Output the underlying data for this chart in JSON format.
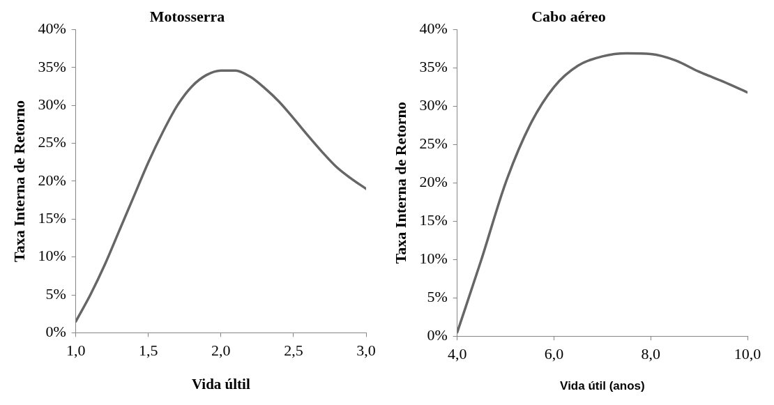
{
  "chart_data": [
    {
      "type": "line",
      "title": "Motosserra",
      "xlabel": "Vida últil",
      "ylabel": "Taxa Interna de Retorno",
      "legend": false,
      "grid": false,
      "marker": "none",
      "line_style": "solid",
      "x": [
        1.0,
        1.1,
        1.2,
        1.3,
        1.4,
        1.5,
        1.6,
        1.7,
        1.8,
        1.9,
        2.0,
        2.1,
        2.2,
        2.3,
        2.4,
        2.5,
        2.6,
        2.7,
        2.8,
        2.9,
        3.0
      ],
      "series": [
        {
          "color": "#666666",
          "values": [
            1.5,
            5,
            9,
            13.5,
            18,
            22.5,
            26.5,
            30,
            32.5,
            34,
            34.6,
            34.6,
            33.8,
            32.3,
            30.5,
            28.3,
            26,
            23.8,
            21.8,
            20.3,
            19
          ]
        }
      ],
      "xlim": [
        1,
        3
      ],
      "xticks": [
        {
          "value": 1,
          "label": "1,0"
        },
        {
          "value": 1.5,
          "label": "1,5"
        },
        {
          "value": 2,
          "label": "2,0"
        },
        {
          "value": 2.5,
          "label": "2,5"
        },
        {
          "value": 3,
          "label": "3,0"
        }
      ],
      "ylim": [
        0,
        40
      ],
      "yticks": [
        {
          "value": 0,
          "label": "0%"
        },
        {
          "value": 5,
          "label": "5%"
        },
        {
          "value": 10,
          "label": "10%"
        },
        {
          "value": 15,
          "label": "15%"
        },
        {
          "value": 20,
          "label": "20%"
        },
        {
          "value": 25,
          "label": "25%"
        },
        {
          "value": 30,
          "label": "30%"
        },
        {
          "value": 35,
          "label": "35%"
        },
        {
          "value": 40,
          "label": "40%"
        }
      ]
    },
    {
      "type": "line",
      "title": "Cabo aéreo",
      "xlabel": "Vida útil (anos)",
      "ylabel": "Taxa Interna de Retorno",
      "legend": false,
      "grid": false,
      "marker": "none",
      "line_style": "solid",
      "x": [
        4.0,
        4.5,
        5.0,
        5.5,
        6.0,
        6.5,
        7.0,
        7.5,
        8.0,
        8.5,
        9.0,
        9.5,
        10.0
      ],
      "series": [
        {
          "color": "#666666",
          "values": [
            0.5,
            10,
            20,
            27.5,
            32.5,
            35.3,
            36.5,
            36.9,
            36.8,
            36,
            34.5,
            33.2,
            31.8
          ]
        }
      ],
      "xlim": [
        4,
        10
      ],
      "xticks": [
        {
          "value": 4,
          "label": "4,0"
        },
        {
          "value": 6,
          "label": "6,0"
        },
        {
          "value": 8,
          "label": "8,0"
        },
        {
          "value": 10,
          "label": "10,0"
        }
      ],
      "ylim": [
        0,
        40
      ],
      "yticks": [
        {
          "value": 0,
          "label": "0%"
        },
        {
          "value": 5,
          "label": "5%"
        },
        {
          "value": 10,
          "label": "10%"
        },
        {
          "value": 15,
          "label": "15%"
        },
        {
          "value": 20,
          "label": "20%"
        },
        {
          "value": 25,
          "label": "25%"
        },
        {
          "value": 30,
          "label": "30%"
        },
        {
          "value": 35,
          "label": "35%"
        },
        {
          "value": 40,
          "label": "40%"
        }
      ]
    }
  ]
}
